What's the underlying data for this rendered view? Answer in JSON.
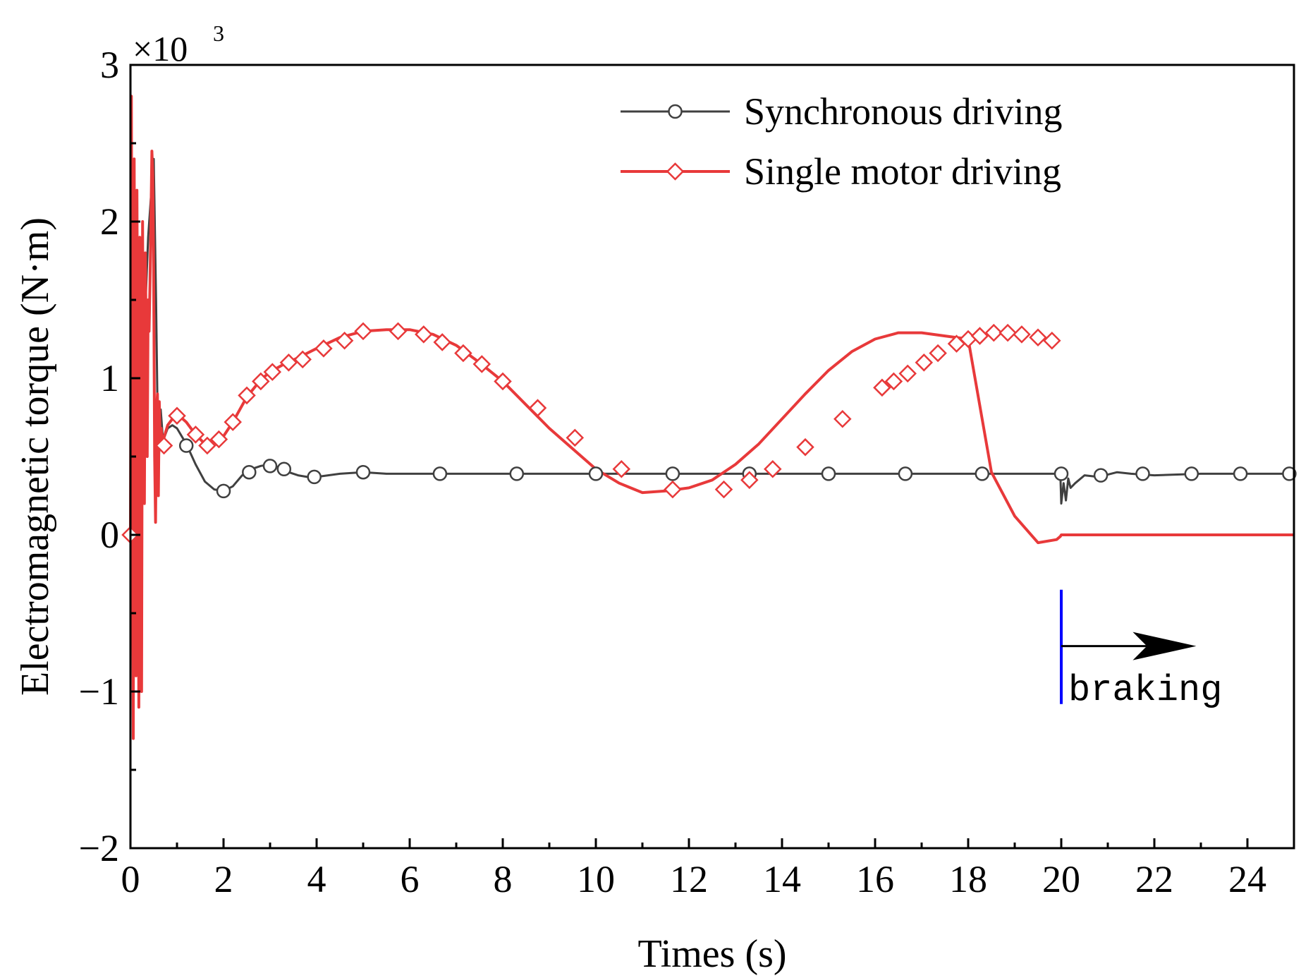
{
  "chart_data": {
    "type": "line",
    "xlabel": "Times (s)",
    "ylabel": "Electromagnetic torque (N·m)",
    "y_multiplier": "×10",
    "y_multiplier_exp": "3",
    "xlim": [
      0,
      25
    ],
    "ylim": [
      -2,
      3
    ],
    "x_ticks": [
      0,
      2,
      4,
      6,
      8,
      10,
      12,
      14,
      16,
      18,
      20,
      22,
      24
    ],
    "x_tick_labels": [
      "0",
      "2",
      "4",
      "6",
      "8",
      "10",
      "12",
      "14",
      "16",
      "18",
      "20",
      "22",
      "24"
    ],
    "y_ticks": [
      -2,
      -1,
      0,
      1,
      2,
      3
    ],
    "y_tick_labels": [
      "−2",
      "−1",
      "0",
      "1",
      "2",
      "3"
    ],
    "legend_position": "top-right",
    "series": [
      {
        "name": "Synchronous driving",
        "color": "#404040",
        "marker": "circle",
        "x": [
          0,
          0.08,
          0.15,
          0.22,
          0.3,
          0.38,
          0.45,
          0.5,
          0.55,
          0.6,
          0.65,
          0.7,
          0.8,
          0.9,
          1.0,
          1.2,
          1.4,
          1.6,
          1.8,
          2.0,
          2.2,
          2.4,
          2.6,
          2.8,
          3.0,
          3.2,
          3.4,
          3.6,
          3.8,
          4.0,
          4.5,
          5.0,
          5.5,
          6.0,
          8.0,
          10.0,
          12.0,
          14.0,
          16.0,
          18.0,
          19.98,
          20.0,
          20.05,
          20.1,
          20.15,
          20.2,
          20.3,
          20.5,
          20.8,
          21.2,
          21.5,
          22.0,
          23.0,
          24.0,
          25.0
        ],
        "values": [
          0,
          1.6,
          1.2,
          1.8,
          1.3,
          1.9,
          2.2,
          2.4,
          1.5,
          0.4,
          0.8,
          0.6,
          0.68,
          0.7,
          0.68,
          0.58,
          0.45,
          0.34,
          0.29,
          0.28,
          0.31,
          0.38,
          0.42,
          0.44,
          0.45,
          0.43,
          0.4,
          0.38,
          0.37,
          0.37,
          0.39,
          0.4,
          0.39,
          0.39,
          0.39,
          0.39,
          0.39,
          0.39,
          0.39,
          0.39,
          0.39,
          0.2,
          0.33,
          0.22,
          0.36,
          0.3,
          0.33,
          0.38,
          0.37,
          0.4,
          0.39,
          0.38,
          0.39,
          0.39,
          0.39
        ],
        "marker_x": [
          1.2,
          2.0,
          2.55,
          3.0,
          3.3,
          3.95,
          5.0,
          6.65,
          8.3,
          10.0,
          11.65,
          13.3,
          15.0,
          16.65,
          18.3,
          20.0,
          20.85,
          21.75,
          22.8,
          23.85,
          24.9
        ],
        "marker_values": [
          0.57,
          0.28,
          0.4,
          0.44,
          0.42,
          0.37,
          0.4,
          0.39,
          0.39,
          0.39,
          0.39,
          0.39,
          0.39,
          0.39,
          0.39,
          0.39,
          0.38,
          0.39,
          0.39,
          0.39,
          0.39
        ]
      },
      {
        "name": "Single motor driving",
        "color": "#e8393a",
        "marker": "diamond",
        "x": [
          0,
          0.02,
          0.04,
          0.06,
          0.08,
          0.1,
          0.12,
          0.14,
          0.16,
          0.18,
          0.2,
          0.22,
          0.24,
          0.26,
          0.28,
          0.3,
          0.32,
          0.34,
          0.36,
          0.38,
          0.4,
          0.42,
          0.44,
          0.46,
          0.48,
          0.5,
          0.52,
          0.54,
          0.56,
          0.58,
          0.6,
          0.62,
          0.64,
          0.66,
          0.68,
          0.7,
          0.75,
          0.8,
          0.9,
          1.0,
          1.05,
          1.2,
          1.4,
          1.6,
          1.8,
          2.0,
          2.2,
          2.5,
          2.8,
          3.0,
          3.3,
          3.6,
          4.0,
          4.5,
          5.0,
          5.5,
          6.0,
          6.5,
          7.0,
          7.5,
          8.0,
          9.0,
          10.0,
          10.5,
          11.0,
          11.5,
          12.0,
          12.5,
          13.0,
          13.5,
          14.0,
          14.5,
          15.0,
          15.5,
          16.0,
          16.5,
          17.0,
          17.5,
          18.0,
          18.5,
          19.0,
          19.5,
          19.9,
          19.98,
          20.0,
          20.05,
          20.4,
          21.0,
          22.0,
          23.0,
          24.0,
          25.0
        ],
        "values": [
          0,
          2.8,
          0.4,
          -1.3,
          2.4,
          0.2,
          -0.9,
          2.2,
          0.6,
          -1.1,
          1.9,
          0.9,
          -1.0,
          2.0,
          0.5,
          0.2,
          1.8,
          1.2,
          0.5,
          1.5,
          1.3,
          1.6,
          2.0,
          2.45,
          2.3,
          1.6,
          0.5,
          0.08,
          0.8,
          0.9,
          0.25,
          0.85,
          0.6,
          0.68,
          0.62,
          0.6,
          0.65,
          0.7,
          0.74,
          0.76,
          0.76,
          0.72,
          0.64,
          0.58,
          0.6,
          0.63,
          0.72,
          0.88,
          0.99,
          1.04,
          1.09,
          1.13,
          1.19,
          1.26,
          1.3,
          1.31,
          1.31,
          1.28,
          1.21,
          1.1,
          0.98,
          0.68,
          0.42,
          0.33,
          0.27,
          0.28,
          0.3,
          0.35,
          0.45,
          0.58,
          0.74,
          0.9,
          1.05,
          1.17,
          1.25,
          1.29,
          1.29,
          1.27,
          1.25,
          0.4,
          0.12,
          -0.05,
          -0.03,
          -0.01,
          0,
          0,
          0,
          0,
          0,
          0,
          0,
          0
        ],
        "marker_x": [
          0,
          0.72,
          1.0,
          1.4,
          1.65,
          1.9,
          2.2,
          2.5,
          2.8,
          3.05,
          3.4,
          3.7,
          4.15,
          4.6,
          5.0,
          5.75,
          6.3,
          6.7,
          7.15,
          7.55,
          8.0,
          8.75,
          9.55,
          10.55,
          11.65,
          12.75,
          13.3,
          13.8,
          14.5,
          15.3,
          16.15,
          16.4,
          16.7,
          17.05,
          17.35,
          17.75,
          18.0,
          18.25,
          18.55,
          18.85,
          19.15,
          19.5,
          19.8
        ],
        "marker_values": [
          0,
          0.57,
          0.76,
          0.64,
          0.57,
          0.61,
          0.72,
          0.89,
          0.98,
          1.04,
          1.1,
          1.12,
          1.19,
          1.24,
          1.3,
          1.3,
          1.28,
          1.23,
          1.16,
          1.09,
          0.98,
          0.81,
          0.62,
          0.42,
          0.29,
          0.29,
          0.35,
          0.42,
          0.56,
          0.74,
          0.94,
          0.98,
          1.03,
          1.1,
          1.16,
          1.22,
          1.25,
          1.27,
          1.29,
          1.29,
          1.28,
          1.26,
          1.24
        ]
      }
    ],
    "annotation": {
      "text": "braking",
      "marker_x": 20.0,
      "marker_y_range": [
        -1.08,
        -0.35
      ],
      "arrow_y": -0.71,
      "arrow_x_range": [
        20.0,
        22.9
      ],
      "marker_color": "#0000ff",
      "arrow_color": "#000000"
    }
  }
}
